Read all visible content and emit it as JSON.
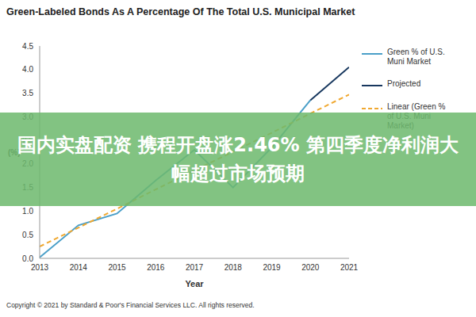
{
  "chart_data": {
    "type": "line",
    "title": "Green-Labeled Bonds As A Percentage Of The Total U.S. Municipal Market",
    "x_label": "Year",
    "y_label": "(%)",
    "x": [
      2013,
      2014,
      2015,
      2016,
      2017,
      2018,
      2019,
      2020,
      2021
    ],
    "xlim": [
      2013,
      2021
    ],
    "xticks": [
      2013,
      2014,
      2015,
      2016,
      2017,
      2018,
      2019,
      2020,
      2021
    ],
    "ylim": [
      0,
      4.5
    ],
    "yticks": [
      {
        "value": 0,
        "label": "0.0"
      },
      0.5,
      {
        "value": 1,
        "label": "1.0"
      },
      1.5,
      {
        "value": 2,
        "label": "2.0"
      },
      2.5,
      {
        "value": 3,
        "label": "3.0"
      },
      3.5,
      {
        "value": 4,
        "label": "4.0"
      },
      4.5
    ],
    "grid": false,
    "legend": "right",
    "series": [
      {
        "name": "Green % of U.S. Muni Market",
        "color": "#4a9fc8",
        "line_style": "solid",
        "values": [
          0.02,
          0.7,
          0.95,
          1.65,
          2.3,
          1.5,
          2.35,
          3.35,
          null
        ]
      },
      {
        "name": "Projected",
        "color": "#17375e",
        "line_style": "solid",
        "values": [
          null,
          null,
          null,
          null,
          null,
          null,
          null,
          3.35,
          4.05
        ]
      },
      {
        "name": "Linear (Green % of U.S. Muni Market)",
        "color": "#f0a830",
        "line_style": "dashed",
        "values": [
          0.25,
          0.65,
          1.05,
          1.46,
          1.86,
          2.26,
          2.66,
          3.07,
          3.47
        ]
      }
    ],
    "annotation": "国内实盘配资 携程开盘涨2.46% 第四季度净利润大幅超过市场预期",
    "source": "Copyright © 2021 by Standard & Poor's Financial Services LLC. All rights reserved."
  }
}
